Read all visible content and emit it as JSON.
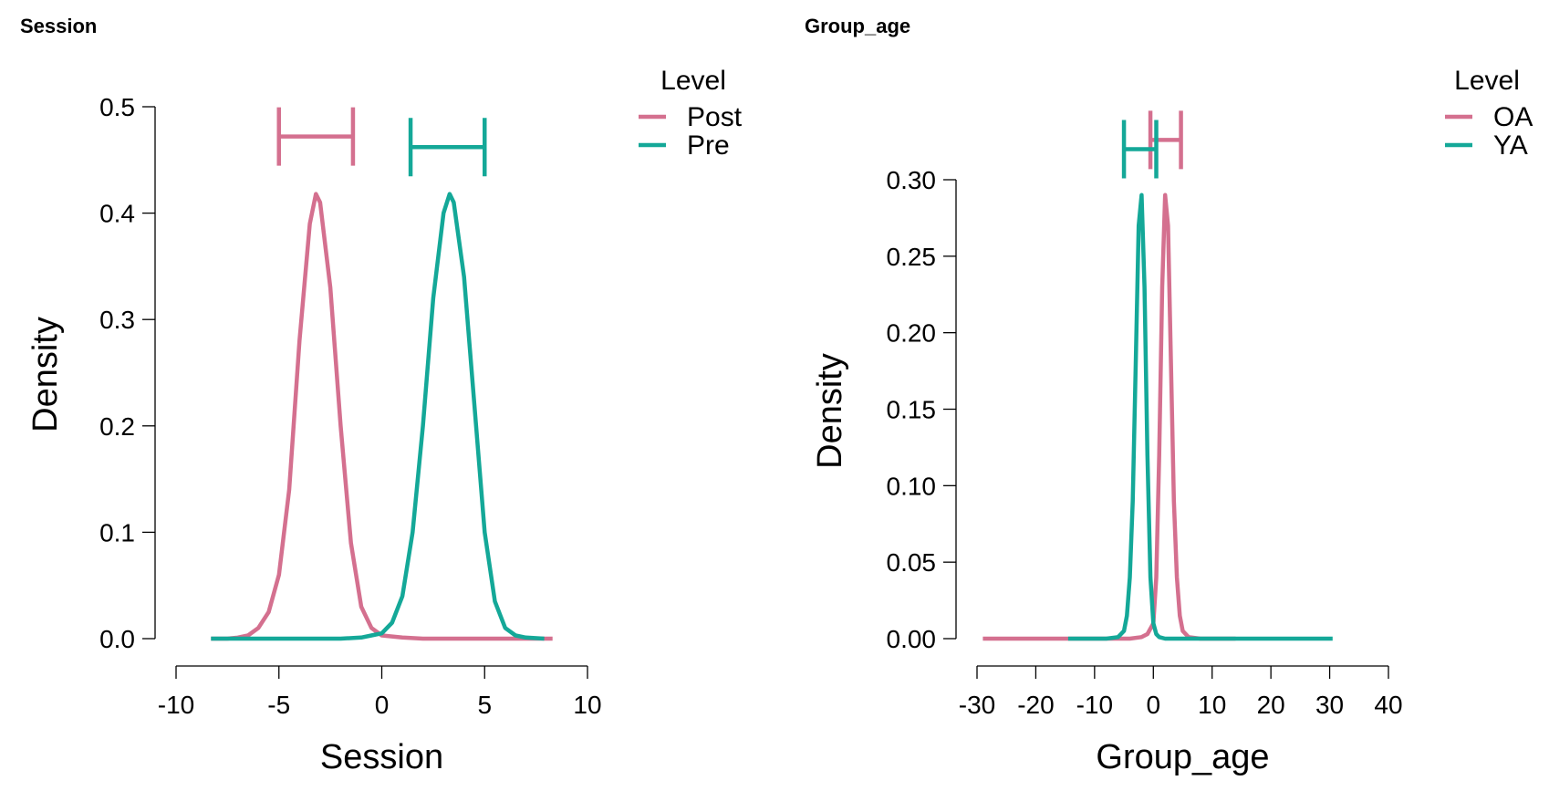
{
  "colors": {
    "series_a": "#d4708f",
    "series_b": "#14a898",
    "axis": "#000000"
  },
  "chart_data": [
    {
      "type": "line",
      "panel_title": "Session",
      "xlabel": "Session",
      "ylabel": "Density",
      "xlim": [
        -10,
        10
      ],
      "ylim": [
        0,
        0.5
      ],
      "xticks": [
        -10,
        -5,
        0,
        5,
        10
      ],
      "xtick_labels": [
        "-10",
        "-5",
        "0",
        "5",
        "10"
      ],
      "yticks": [
        0,
        0.1,
        0.2,
        0.3,
        0.4,
        0.5
      ],
      "ytick_labels": [
        "0.0",
        "0.1",
        "0.2",
        "0.3",
        "0.4",
        "0.5"
      ],
      "legend_title": "Level",
      "legend_position": "top-right",
      "series": [
        {
          "name": "Post",
          "color": "#d4708f",
          "x": [
            -8.3,
            -7.5,
            -7,
            -6.5,
            -6,
            -5.5,
            -5,
            -4.5,
            -4,
            -3.5,
            -3.2,
            -3,
            -2.5,
            -2,
            -1.5,
            -1,
            -0.5,
            0,
            1,
            2,
            4,
            6,
            8.3
          ],
          "y": [
            0,
            0,
            0.001,
            0.003,
            0.01,
            0.025,
            0.06,
            0.14,
            0.28,
            0.39,
            0.418,
            0.41,
            0.33,
            0.2,
            0.09,
            0.03,
            0.01,
            0.003,
            0.001,
            0,
            0,
            0,
            0
          ],
          "interval": [
            -5,
            -1.4
          ],
          "interval_y": 0.472
        },
        {
          "name": "Pre",
          "color": "#14a898",
          "x": [
            -8.3,
            -6,
            -4,
            -2,
            -1,
            -0.5,
            0,
            0.5,
            1,
            1.5,
            2,
            2.5,
            3,
            3.3,
            3.5,
            4,
            4.5,
            5,
            5.5,
            6,
            6.5,
            7,
            7.9
          ],
          "y": [
            0,
            0,
            0,
            0,
            0.001,
            0.003,
            0.005,
            0.015,
            0.04,
            0.1,
            0.2,
            0.32,
            0.4,
            0.418,
            0.41,
            0.34,
            0.22,
            0.1,
            0.035,
            0.01,
            0.003,
            0.001,
            0
          ],
          "interval": [
            1.4,
            5
          ],
          "interval_y": 0.462
        }
      ]
    },
    {
      "type": "line",
      "panel_title": "Group_age",
      "xlabel": "Group_age",
      "ylabel": "Density",
      "xlim": [
        -30,
        40
      ],
      "ylim": [
        0,
        0.3
      ],
      "xticks": [
        -30,
        -20,
        -10,
        0,
        10,
        20,
        30,
        40
      ],
      "xtick_labels": [
        "-30",
        "-20",
        "-10",
        "0",
        "10",
        "20",
        "30",
        "40"
      ],
      "yticks": [
        0,
        0.05,
        0.1,
        0.15,
        0.2,
        0.25,
        0.3
      ],
      "ytick_labels": [
        "0.00",
        "0.05",
        "0.10",
        "0.15",
        "0.20",
        "0.25",
        "0.30"
      ],
      "legend_title": "Level",
      "legend_position": "top-right",
      "series": [
        {
          "name": "OA",
          "color": "#d4708f",
          "x": [
            -29,
            -15,
            -8,
            -4,
            -2,
            -1,
            0,
            0.5,
            1,
            1.5,
            2,
            2.5,
            3,
            3.5,
            4,
            4.5,
            5,
            6,
            8,
            14
          ],
          "y": [
            0,
            0,
            0,
            0,
            0.001,
            0.003,
            0.01,
            0.04,
            0.12,
            0.23,
            0.29,
            0.27,
            0.18,
            0.09,
            0.04,
            0.015,
            0.005,
            0.001,
            0,
            0
          ],
          "interval": [
            -0.5,
            4.7
          ],
          "interval_y": 0.326
        },
        {
          "name": "YA",
          "color": "#14a898",
          "x": [
            -14.5,
            -8,
            -6,
            -5,
            -4.5,
            -4,
            -3.5,
            -3,
            -2.5,
            -2,
            -1.5,
            -1,
            -0.5,
            0,
            0.5,
            1,
            2,
            4,
            10,
            30.5
          ],
          "y": [
            0,
            0,
            0.001,
            0.005,
            0.015,
            0.04,
            0.09,
            0.18,
            0.27,
            0.29,
            0.23,
            0.12,
            0.04,
            0.01,
            0.003,
            0.001,
            0,
            0,
            0,
            0
          ],
          "interval": [
            -5,
            0.5
          ],
          "interval_y": 0.32
        }
      ]
    }
  ]
}
